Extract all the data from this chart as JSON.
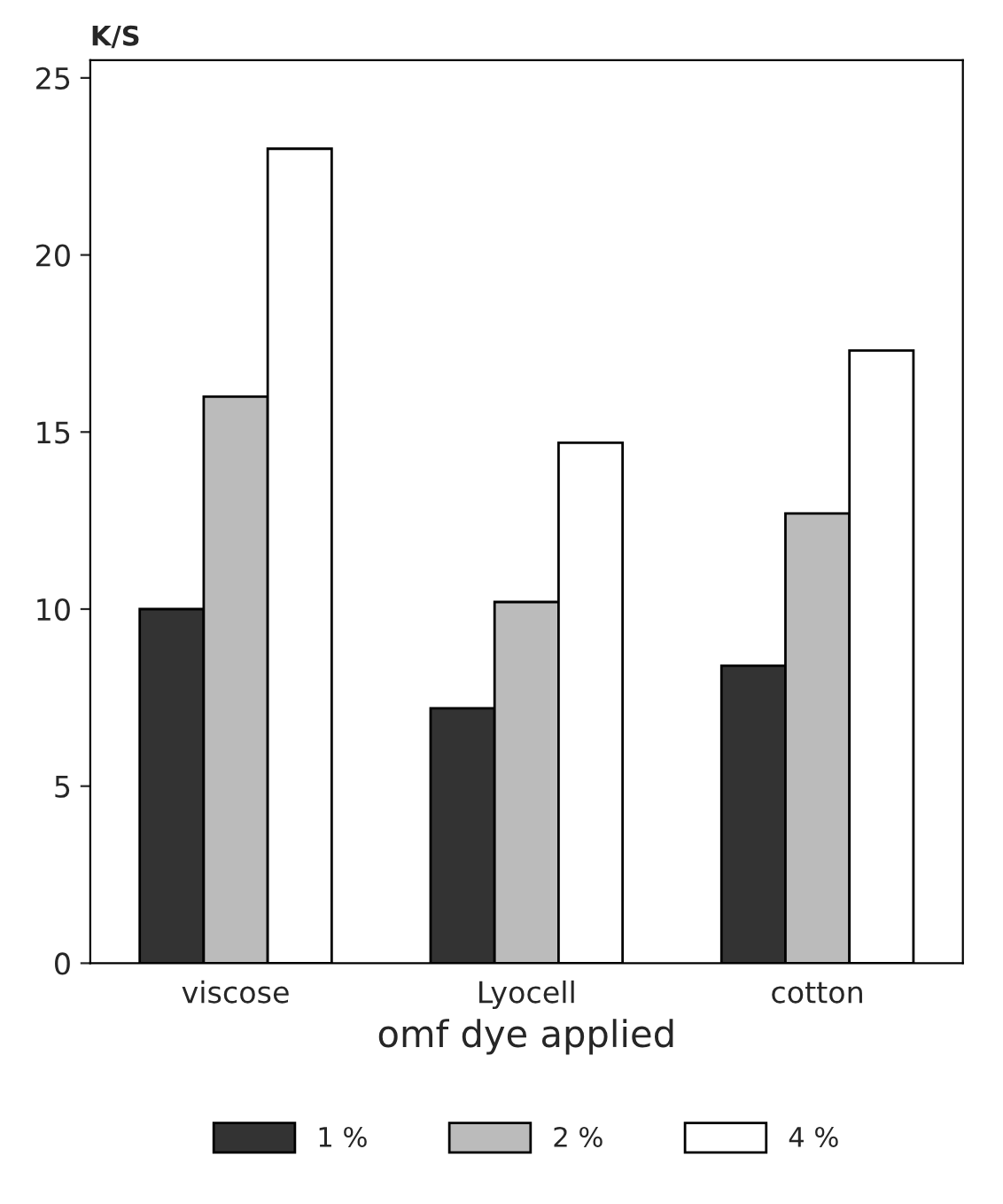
{
  "chart_data": {
    "type": "bar",
    "ylabel": "K/S",
    "xlabel": "omf dye applied",
    "categories": [
      "viscose",
      "Lyocell",
      "cotton"
    ],
    "series": [
      {
        "name": "1 %",
        "color": "#333333",
        "values": [
          10.0,
          7.2,
          8.4
        ]
      },
      {
        "name": "2 %",
        "color": "#bbbbbb",
        "values": [
          16.0,
          10.2,
          12.7
        ]
      },
      {
        "name": "4 %",
        "color": "#ffffff",
        "values": [
          23.0,
          14.7,
          17.3
        ]
      }
    ],
    "ylim": [
      0,
      25.5
    ],
    "yticks": [
      0,
      5,
      10,
      15,
      20,
      25
    ],
    "grid": false,
    "legend": "bottom"
  }
}
